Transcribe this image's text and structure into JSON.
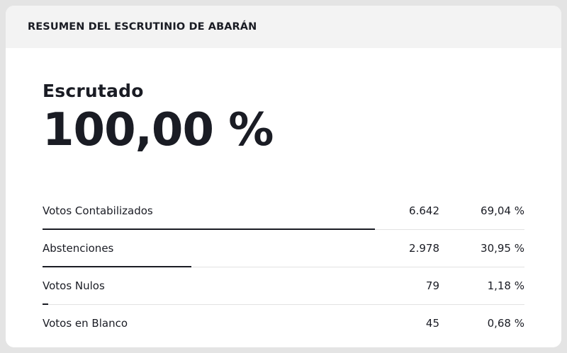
{
  "header": {
    "title": "RESUMEN DEL ESCRUTINIO DE ABARÁN"
  },
  "summary": {
    "label": "Escrutado",
    "value": "100,00 %"
  },
  "rows": [
    {
      "name": "Votos Contabilizados",
      "count": "6.642",
      "percent": "69,04 %",
      "fraction": 0.6904,
      "show_bar": true
    },
    {
      "name": "Abstenciones",
      "count": "2.978",
      "percent": "30,95 %",
      "fraction": 0.3095,
      "show_bar": true
    },
    {
      "name": "Votos Nulos",
      "count": "79",
      "percent": "1,18 %",
      "fraction": 0.0118,
      "show_bar": true
    },
    {
      "name": "Votos en Blanco",
      "count": "45",
      "percent": "0,68 %",
      "fraction": 0.0068,
      "show_bar": false
    }
  ],
  "colors": {
    "text": "#1a1c24",
    "bar": "#1a1c24",
    "header_bg": "#f3f3f3",
    "divider": "#e2e2e2"
  }
}
